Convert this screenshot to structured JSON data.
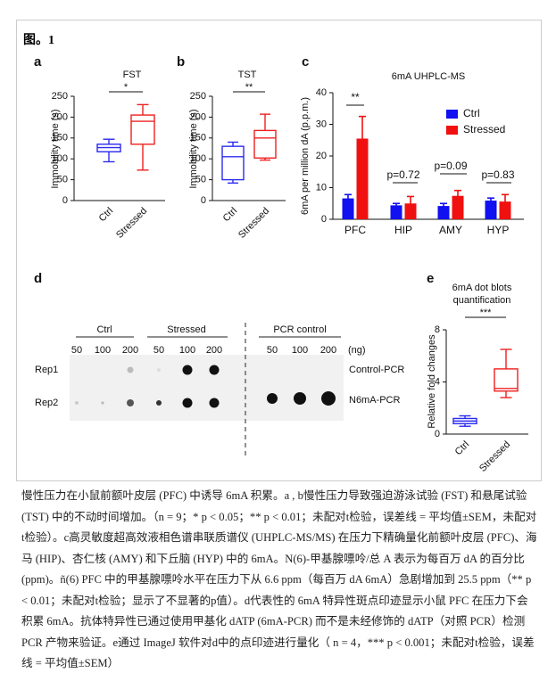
{
  "figure_label": "图。1",
  "chart_data": [
    {
      "type": "box",
      "panel": "a",
      "title": "FST",
      "ylabel": "Immobility time (s)",
      "categories": [
        "Ctrl",
        "Stressed"
      ],
      "colors": [
        "#2b2bf0",
        "#ee2020"
      ],
      "boxes": [
        {
          "whislo": 93,
          "q1": 117,
          "med": 127,
          "q3": 135,
          "whishi": 147
        },
        {
          "whislo": 73,
          "q1": 135,
          "med": 190,
          "q3": 205,
          "whishi": 230
        }
      ],
      "ylim": [
        0,
        250
      ],
      "yticks": [
        0,
        50,
        100,
        150,
        200,
        250
      ],
      "significance": "*"
    },
    {
      "type": "box",
      "panel": "b",
      "title": "TST",
      "ylabel": "Immobility time (s)",
      "categories": [
        "Ctrl",
        "Stressed"
      ],
      "colors": [
        "#2b2bf0",
        "#ee2020"
      ],
      "boxes": [
        {
          "whislo": 42,
          "q1": 50,
          "med": 105,
          "q3": 130,
          "whishi": 140
        },
        {
          "whislo": 97,
          "q1": 102,
          "med": 150,
          "q3": 168,
          "whishi": 207
        }
      ],
      "ylim": [
        0,
        250
      ],
      "yticks": [
        0,
        50,
        100,
        150,
        200,
        250
      ],
      "significance": "**"
    },
    {
      "type": "bar",
      "panel": "c",
      "title": "6mA UHPLC-MS",
      "ylabel": "6mA per million dA (p.p.m.)",
      "categories": [
        "PFC",
        "HIP",
        "AMY",
        "HYP"
      ],
      "series": [
        {
          "name": "Ctrl",
          "color": "#1010f0",
          "values": [
            6.6,
            4.4,
            4.2,
            5.9
          ],
          "errors": [
            1.2,
            0.6,
            0.8,
            0.8
          ]
        },
        {
          "name": "Stressed",
          "color": "#f01010",
          "values": [
            25.5,
            5.0,
            7.4,
            5.6
          ],
          "errors": [
            7.0,
            2.2,
            1.7,
            2.2
          ]
        }
      ],
      "ylim": [
        0,
        40
      ],
      "yticks": [
        0,
        10,
        20,
        30,
        40
      ],
      "annotations": [
        "**",
        "p=0.72",
        "p=0.09",
        "p=0.83"
      ],
      "legend": "upper right"
    },
    {
      "type": "box",
      "panel": "e",
      "title_lines": [
        "6mA dot blots",
        "quantification"
      ],
      "ylabel": "Relative fold changes",
      "categories": [
        "Ctrl",
        "Stressed"
      ],
      "colors": [
        "#2b2bf0",
        "#ee2020"
      ],
      "boxes": [
        {
          "whislo": 0.6,
          "q1": 0.8,
          "med": 1.0,
          "q3": 1.2,
          "whishi": 1.4
        },
        {
          "whislo": 2.8,
          "q1": 3.3,
          "med": 3.5,
          "q3": 5.0,
          "whishi": 6.5
        }
      ],
      "ylim": [
        0,
        8
      ],
      "yticks": [
        0,
        4,
        8
      ],
      "significance": "***"
    }
  ],
  "blot": {
    "panel": "d",
    "groups": [
      "Ctrl",
      "Stressed",
      "PCR control"
    ],
    "amounts": [
      50,
      100,
      200
    ],
    "unit": "(ng)",
    "rows": [
      "Rep1",
      "Rep2"
    ],
    "row_notes": [
      "Control-PCR",
      "N6mA-PCR"
    ]
  },
  "caption": "慢性压力在小鼠前额叶皮层 (PFC) 中诱导 6mA 积累。a , b慢性压力导致强迫游泳试验 (FST) 和悬尾试验 (TST) 中的不动时间增加。（n = 9；* p < 0.05；** p < 0.01；未配对t检验，误差线 = 平均值±SEM，未配对t检验）。c高灵敏度超高效液相色谱串联质谱仪 (UHPLC-MS/MS) 在压力下精确量化前额叶皮层 (PFC)、海马 (HIP)、杏仁核 (AMY) 和下丘脑 (HYP) 中的 6mA。N(6)-甲基腺嘌呤/总 A 表示为每百万 dA 的百分比 (ppm)。ñ(6) PFC 中的甲基腺嘌呤水平在压力下从 6.6 ppm（每百万 dA 6mA）急剧增加到 25.5 ppm（** p < 0.01；未配对t检验；显示了不显著的p值）。d代表性的 6mA 特异性斑点印迹显示小鼠 PFC 在压力下会积累 6mA。抗体特异性已通过使用甲基化 dATP (6mA-PCR) 而不是未经修饰的 dATP（对照 PCR）检测 PCR 产物来验证。e通过 ImageJ 软件对d中的点印迹进行量化（ n = 4，*** p < 0.001；未配对t检验，误差线 = 平均值±SEM）"
}
